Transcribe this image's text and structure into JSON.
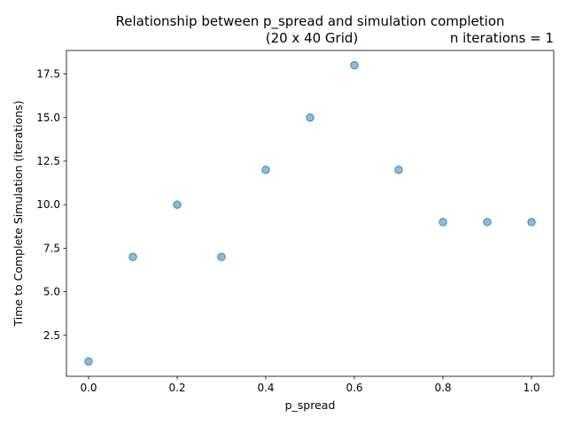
{
  "chart_data": {
    "type": "scatter",
    "title": "Relationship between p_spread and simulation completion",
    "subtitle": "(20 x 40 Grid)",
    "annotation": "n iterations = 1",
    "xlabel": "p_spread",
    "ylabel": "Time to Complete Simulation (iterations)",
    "xlim": [
      -0.05,
      1.05
    ],
    "ylim": [
      0.15,
      18.85
    ],
    "x_ticks": [
      0.0,
      0.2,
      0.4,
      0.6,
      0.8,
      1.0
    ],
    "x_tick_labels": [
      "0.0",
      "0.2",
      "0.4",
      "0.6",
      "0.8",
      "1.0"
    ],
    "y_ticks": [
      2.5,
      5.0,
      7.5,
      10.0,
      12.5,
      15.0,
      17.5
    ],
    "y_tick_labels": [
      "2.5",
      "5.0",
      "7.5",
      "10.0",
      "12.5",
      "15.0",
      "17.5"
    ],
    "grid": false,
    "marker_color": "#1f77b4",
    "marker_alpha": 0.5,
    "points": [
      {
        "x": 0.0,
        "y": 1
      },
      {
        "x": 0.1,
        "y": 7
      },
      {
        "x": 0.2,
        "y": 10
      },
      {
        "x": 0.3,
        "y": 7
      },
      {
        "x": 0.4,
        "y": 12
      },
      {
        "x": 0.5,
        "y": 15
      },
      {
        "x": 0.6,
        "y": 18
      },
      {
        "x": 0.7,
        "y": 12
      },
      {
        "x": 0.8,
        "y": 9
      },
      {
        "x": 0.9,
        "y": 9
      },
      {
        "x": 1.0,
        "y": 9
      }
    ]
  }
}
